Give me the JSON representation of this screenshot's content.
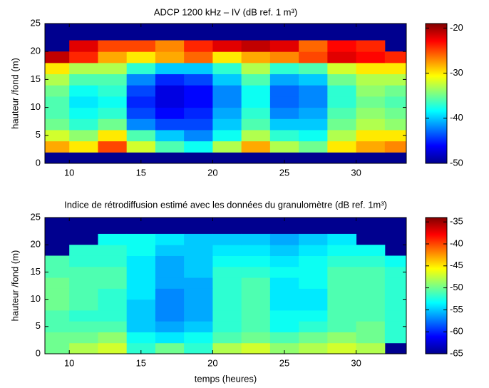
{
  "chart_data": [
    {
      "type": "heatmap",
      "title": "ADCP 1200 kHz  – IV  (dB ref. 1 m³)",
      "ylabel": "hauteur /fond (m)",
      "x": [
        9,
        11,
        13,
        15,
        17,
        19,
        21,
        23,
        25,
        27,
        29,
        31,
        33
      ],
      "y": [
        1,
        3,
        5,
        7,
        9,
        11,
        13,
        15,
        17,
        19,
        21,
        23
      ],
      "z": [
        [
          null,
          null,
          null,
          null,
          null,
          null,
          null,
          null,
          null,
          null,
          null,
          null,
          null
        ],
        [
          -28,
          -30,
          -25,
          -32,
          -36,
          -38,
          -33,
          -28,
          -33,
          -35,
          -30,
          -28,
          -27
        ],
        [
          -32,
          -34,
          -30,
          -36,
          -40,
          -42,
          -38,
          -33,
          -37,
          -38,
          -33,
          -30,
          -30
        ],
        [
          -35,
          -37,
          -35,
          -42,
          -44,
          -44,
          -40,
          -36,
          -40,
          -40,
          -35,
          -33,
          -34
        ],
        [
          -36,
          -38,
          -37,
          -44,
          -46,
          -45,
          -41,
          -37,
          -42,
          -41,
          -36,
          -34,
          -35
        ],
        [
          -36,
          -39,
          -38,
          -45,
          -47,
          -46,
          -42,
          -38,
          -43,
          -42,
          -37,
          -35,
          -36
        ],
        [
          -35,
          -38,
          -37,
          -44,
          -47,
          -46,
          -42,
          -38,
          -43,
          -42,
          -37,
          -34,
          -35
        ],
        [
          -33,
          -36,
          -36,
          -42,
          -45,
          -44,
          -40,
          -36,
          -41,
          -40,
          -35,
          -33,
          -33
        ],
        [
          -30,
          -33,
          -33,
          -37,
          -40,
          -40,
          -37,
          -33,
          -37,
          -36,
          -32,
          -30,
          -30
        ],
        [
          -21,
          -24,
          -28,
          -30,
          -28,
          -26,
          -30,
          -28,
          -27,
          -25,
          -22,
          -23,
          -24
        ],
        [
          null,
          -22,
          -25,
          -25,
          -27,
          -24,
          -22,
          -21,
          -22,
          -26,
          -23,
          -24,
          null
        ],
        [
          null,
          null,
          null,
          null,
          null,
          null,
          null,
          null,
          null,
          null,
          null,
          null,
          null
        ]
      ],
      "xlim": [
        8.3,
        33.5
      ],
      "xticks": [
        10,
        15,
        20,
        25,
        30
      ],
      "ylim": [
        0,
        25
      ],
      "yticks": [
        0,
        5,
        10,
        15,
        20,
        25
      ],
      "zlim": [
        -50,
        -19
      ],
      "zticks": [
        -20,
        -30,
        -40,
        -50
      ]
    },
    {
      "type": "heatmap",
      "title": "Indice de rétrodiffusion estimé  avec les données du granulomètre (dB ref. 1m³)",
      "ylabel": "hauteur /fond (m)",
      "xlabel": "temps (heures)",
      "x": [
        9,
        11,
        13,
        15,
        17,
        19,
        21,
        23,
        25,
        27,
        29,
        31,
        33
      ],
      "y": [
        1,
        3,
        5,
        7,
        9,
        11,
        13,
        15,
        17,
        19,
        21,
        23
      ],
      "z": [
        [
          -50,
          -48,
          -47,
          -52,
          -50,
          -52,
          -48,
          -47,
          -49,
          -48,
          -47,
          -48,
          null
        ],
        [
          -50,
          -50,
          -49,
          -53,
          -54,
          -53,
          -51,
          -50,
          -51,
          -50,
          -49,
          -50,
          -52
        ],
        [
          -51,
          -51,
          -51,
          -55,
          -56,
          -55,
          -52,
          -51,
          -53,
          -52,
          -51,
          -50,
          -52
        ],
        [
          -51,
          -52,
          -52,
          -55,
          -57,
          -56,
          -52,
          -51,
          -53,
          -53,
          -51,
          -51,
          -52
        ],
        [
          -50,
          -51,
          -52,
          -55,
          -57,
          -56,
          -52,
          -51,
          -54,
          -54,
          -51,
          -51,
          -52
        ],
        [
          -50,
          -51,
          -52,
          -54,
          -57,
          -56,
          -52,
          -51,
          -54,
          -54,
          -51,
          -51,
          -52
        ],
        [
          -50,
          -51,
          -51,
          -54,
          -56,
          -56,
          -52,
          -51,
          -54,
          -53,
          -51,
          -51,
          -52
        ],
        [
          -51,
          -51,
          -51,
          -54,
          -56,
          -55,
          -52,
          -52,
          -53,
          -53,
          -51,
          -51,
          -52
        ],
        [
          -51,
          -52,
          -52,
          -54,
          -56,
          -55,
          -53,
          -53,
          -54,
          -53,
          -52,
          -52,
          -53
        ],
        [
          null,
          -52,
          -52,
          -53,
          -55,
          -55,
          -54,
          -54,
          -55,
          -54,
          -53,
          -53,
          null
        ],
        [
          null,
          null,
          -53,
          -53,
          -54,
          -55,
          -55,
          -55,
          -56,
          -55,
          -54,
          null,
          null
        ],
        [
          null,
          null,
          null,
          null,
          null,
          null,
          null,
          null,
          null,
          null,
          null,
          null,
          null
        ]
      ],
      "xlim": [
        8.3,
        33.5
      ],
      "xticks": [
        10,
        15,
        20,
        25,
        30
      ],
      "ylim": [
        0,
        25
      ],
      "yticks": [
        0,
        5,
        10,
        15,
        20,
        25
      ],
      "zlim": [
        -65,
        -34
      ],
      "zticks": [
        -35,
        -40,
        -45,
        -50,
        -55,
        -60,
        -65
      ]
    }
  ]
}
